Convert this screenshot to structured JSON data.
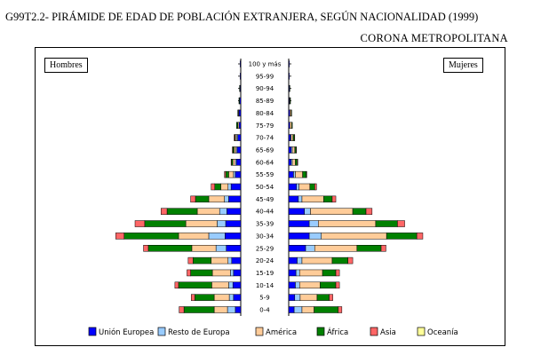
{
  "chart_data": {
    "type": "bar",
    "title": "G99T2.2- PIRÁMIDE DE EDAD DE POBLACIÓN EXTRANJERA, SEGÚN NACIONALIDAD (1999)",
    "subtitle": "CORONA METROPOLITANA",
    "left_label": "Hombres",
    "right_label": "Mujeres",
    "age_groups": [
      "100 y más",
      "95-99",
      "90-94",
      "85-89",
      "80-84",
      "75-79",
      "70-74",
      "65-69",
      "60-64",
      "55-59",
      "50-54",
      "45-49",
      "40-44",
      "35-39",
      "30-34",
      "25-29",
      "20-24",
      "15-19",
      "10-14",
      "5-9",
      "0-4"
    ],
    "series": [
      {
        "name": "Unión Europea",
        "color": "#0000ff",
        "men": [
          1,
          1,
          1,
          2,
          3,
          3,
          5,
          6,
          7,
          9,
          16,
          20,
          23,
          25,
          26,
          24,
          15,
          12,
          13,
          12,
          9
        ],
        "women": [
          1,
          1,
          1,
          1,
          2,
          2,
          3,
          4,
          4,
          8,
          13,
          16,
          26,
          34,
          34,
          28,
          14,
          12,
          11,
          10,
          9
        ]
      },
      {
        "name": "Resto de Europa",
        "color": "#99ccff",
        "men": [
          0,
          0,
          0,
          0,
          0,
          0,
          2,
          2,
          2,
          3,
          5,
          7,
          12,
          14,
          27,
          17,
          6,
          5,
          7,
          7,
          13
        ],
        "women": [
          0,
          0,
          0,
          0,
          0,
          0,
          1,
          2,
          2,
          3,
          4,
          6,
          10,
          15,
          20,
          15,
          8,
          6,
          7,
          9,
          13
        ]
      },
      {
        "name": "América",
        "color": "#ffcc99",
        "men": [
          0,
          0,
          0,
          0,
          1,
          2,
          2,
          3,
          4,
          8,
          12,
          26,
          37,
          52,
          50,
          40,
          28,
          30,
          28,
          25,
          22
        ],
        "women": [
          0,
          0,
          0,
          1,
          2,
          3,
          3,
          4,
          5,
          12,
          18,
          36,
          70,
          95,
          108,
          70,
          50,
          38,
          34,
          28,
          20
        ]
      },
      {
        "name": "África",
        "color": "#008000",
        "men": [
          0,
          0,
          1,
          1,
          1,
          2,
          1,
          2,
          2,
          5,
          10,
          22,
          50,
          68,
          90,
          72,
          30,
          36,
          55,
          32,
          50
        ],
        "women": [
          0,
          0,
          1,
          1,
          1,
          1,
          2,
          2,
          3,
          6,
          8,
          14,
          22,
          36,
          50,
          40,
          26,
          22,
          26,
          20,
          40
        ]
      },
      {
        "name": "Asia",
        "color": "#ff6666",
        "men": [
          0,
          0,
          0,
          0,
          0,
          0,
          1,
          1,
          1,
          2,
          6,
          8,
          10,
          16,
          14,
          8,
          8,
          6,
          6,
          6,
          8
        ],
        "women": [
          0,
          0,
          0,
          0,
          0,
          0,
          1,
          1,
          1,
          1,
          3,
          6,
          10,
          12,
          10,
          8,
          8,
          6,
          6,
          6,
          6
        ]
      },
      {
        "name": "Oceanía",
        "color": "#ffff99",
        "men": [
          0,
          0,
          0,
          0,
          0,
          0,
          0,
          0,
          0,
          0,
          0,
          0,
          0,
          0,
          0,
          0,
          0,
          0,
          0,
          0,
          0
        ],
        "women": [
          0,
          0,
          0,
          0,
          0,
          0,
          0,
          0,
          0,
          0,
          0,
          0,
          0,
          0,
          0,
          0,
          0,
          0,
          0,
          0,
          0
        ]
      }
    ],
    "legend_placement": "bottom",
    "grid": false
  }
}
